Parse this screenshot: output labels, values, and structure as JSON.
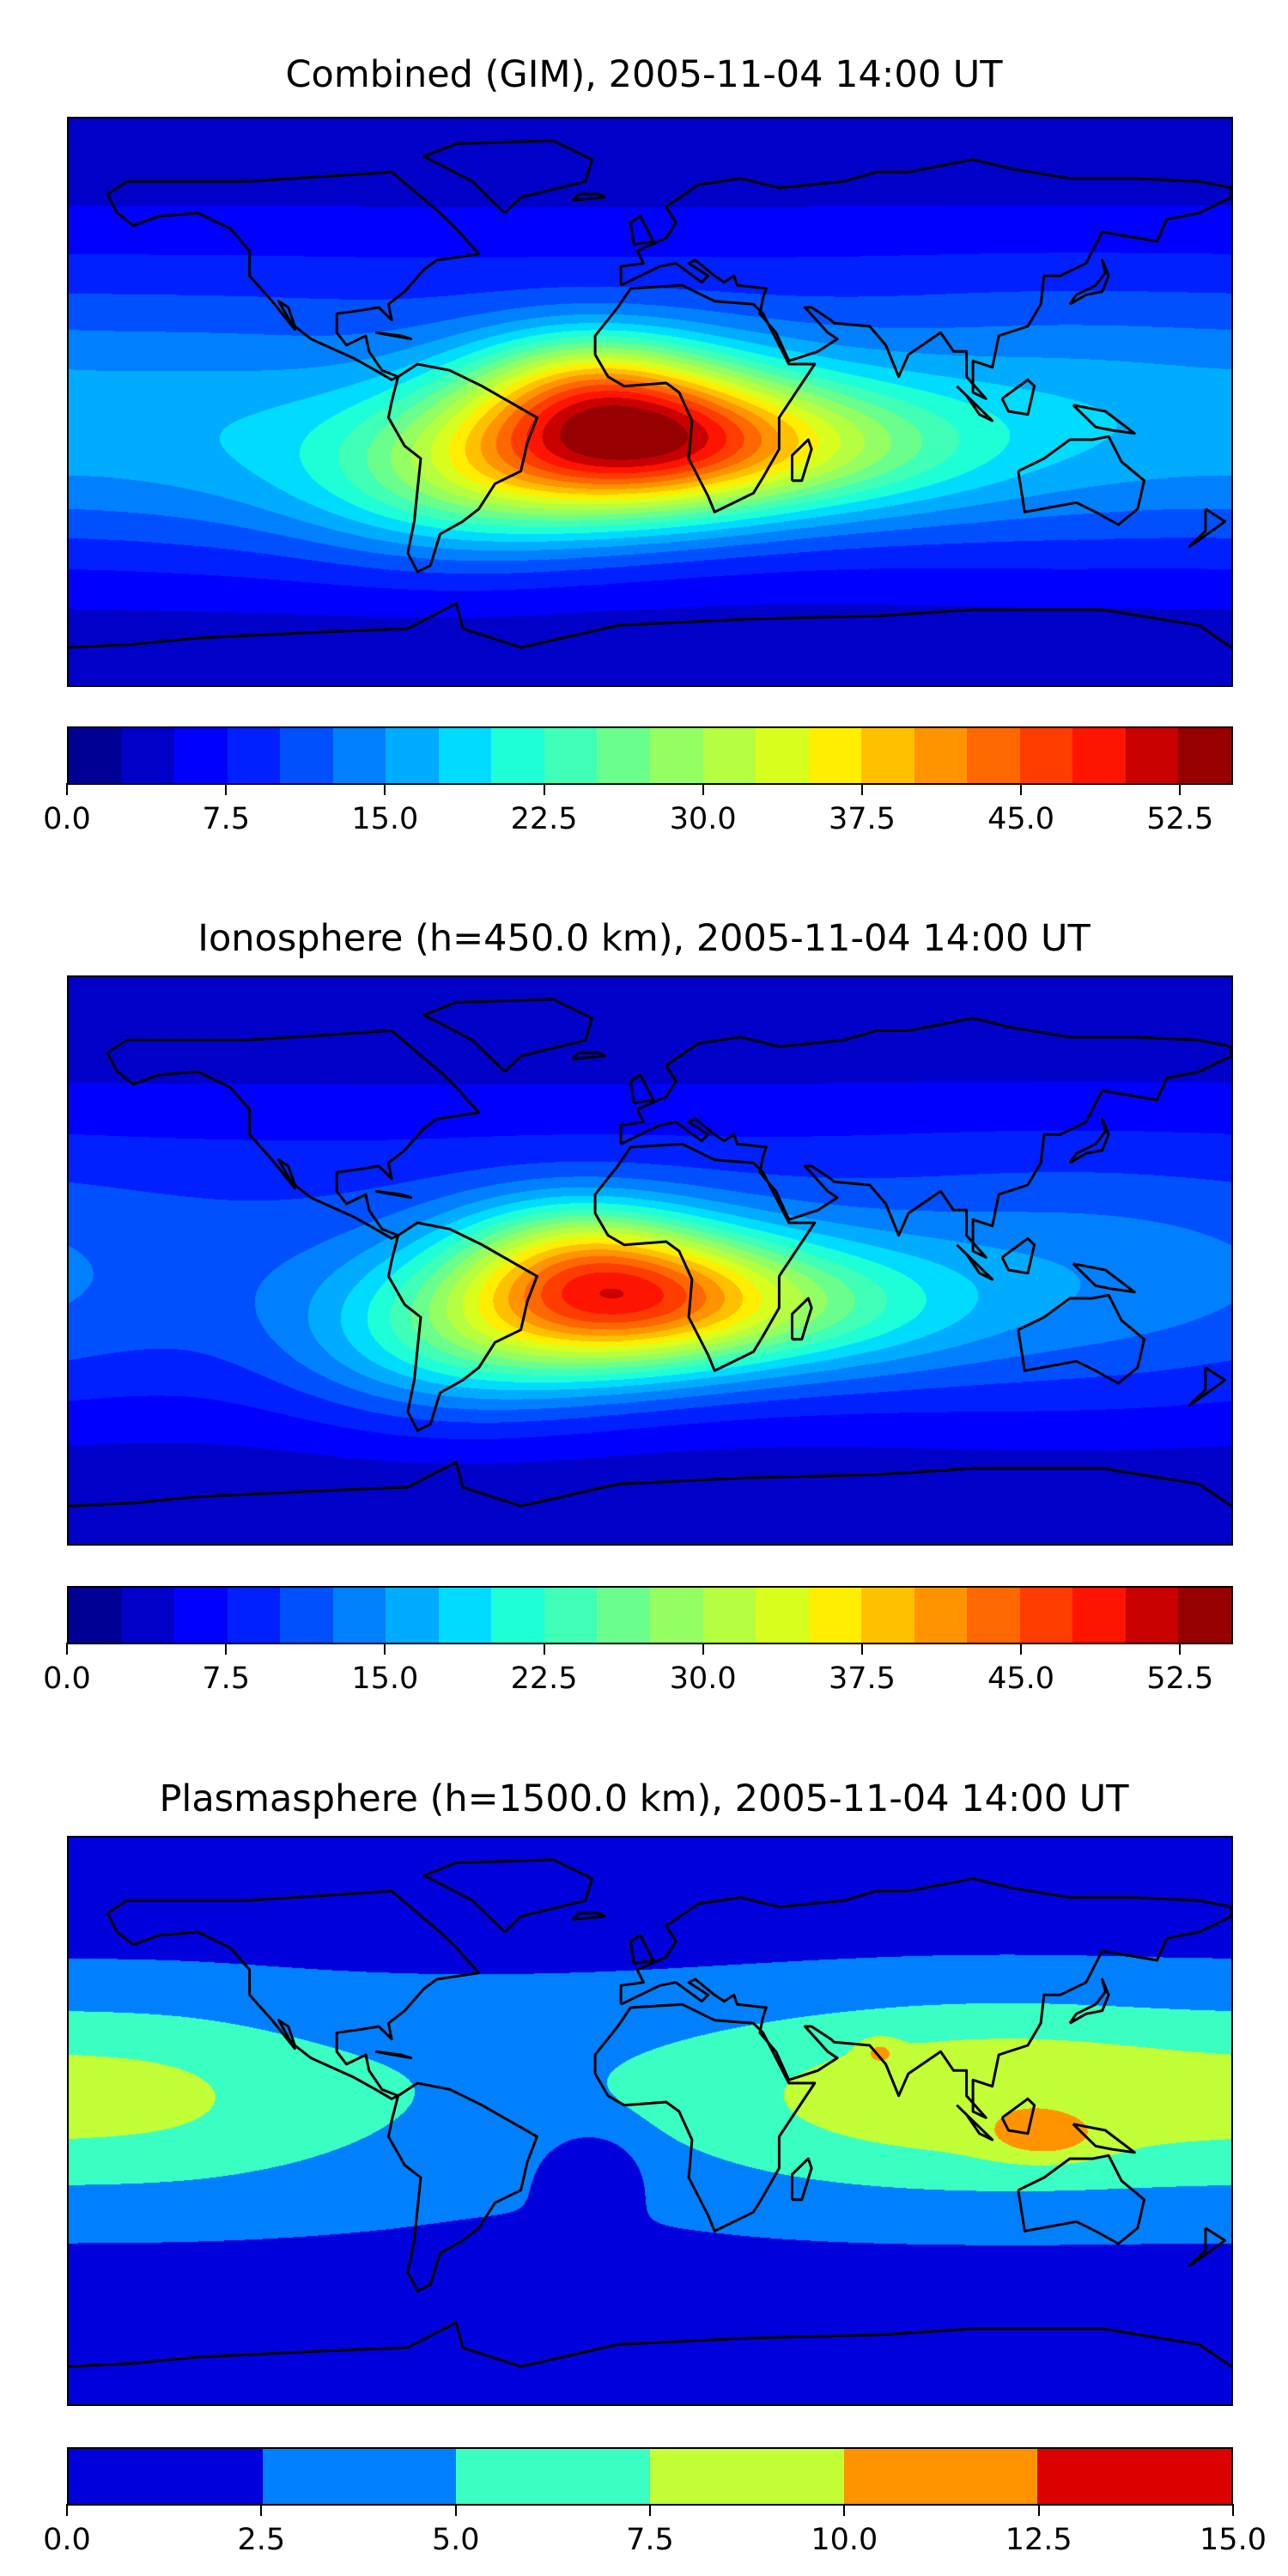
{
  "chart_data": [
    {
      "type": "heatmap",
      "title": "Combined (GIM), 2005-11-04 14:00 UT",
      "projection": "plate-carree world map with coastlines",
      "colorbar": {
        "levels_range": [
          0,
          55
        ],
        "level_step": 2.5,
        "ticks": [
          "0.0",
          "7.5",
          "15.0",
          "22.5",
          "30.0",
          "37.5",
          "45.0",
          "52.5"
        ],
        "tick_values": [
          0,
          7.5,
          15,
          22.5,
          30,
          37.5,
          45,
          52.5
        ],
        "colors": [
          "#000094",
          "#0000c8",
          "#0000ff",
          "#0020ff",
          "#0050ff",
          "#0080ff",
          "#00acff",
          "#00dcff",
          "#1effd8",
          "#40ffb6",
          "#6aff8c",
          "#94ff62",
          "#b6ff40",
          "#d8ff1e",
          "#ffee00",
          "#ffc000",
          "#ff9400",
          "#ff6800",
          "#ff3c00",
          "#ff1400",
          "#c80000",
          "#960000"
        ]
      },
      "field_peak_approx": {
        "value": 50,
        "lon": -5,
        "lat": -12
      }
    },
    {
      "type": "heatmap",
      "title": "Ionosphere  (h=450.0 km), 2005-11-04 14:00 UT",
      "projection": "plate-carree world map with coastlines",
      "colorbar": {
        "levels_range": [
          0,
          55
        ],
        "level_step": 2.5,
        "ticks": [
          "0.0",
          "7.5",
          "15.0",
          "22.5",
          "30.0",
          "37.5",
          "45.0",
          "52.5"
        ],
        "tick_values": [
          0,
          7.5,
          15,
          22.5,
          30,
          37.5,
          45,
          52.5
        ],
        "colors": [
          "#000094",
          "#0000c8",
          "#0000ff",
          "#0020ff",
          "#0050ff",
          "#0080ff",
          "#00acff",
          "#00dcff",
          "#1effd8",
          "#40ffb6",
          "#6aff8c",
          "#94ff62",
          "#b6ff40",
          "#d8ff1e",
          "#ffee00",
          "#ffc000",
          "#ff9400",
          "#ff6800",
          "#ff3c00",
          "#ff1400",
          "#c80000",
          "#960000"
        ]
      },
      "field_peak_approx": {
        "value": 44,
        "lon": -8,
        "lat": -12
      }
    },
    {
      "type": "heatmap",
      "title": "Plasmasphere (h=1500.0 km), 2005-11-04 14:00 UT",
      "projection": "plate-carree world map with coastlines",
      "colorbar": {
        "levels_range": [
          0,
          15
        ],
        "level_step": 2.5,
        "ticks": [
          "0.0",
          "2.5",
          "5.0",
          "7.5",
          "10.0",
          "12.5",
          "15.0"
        ],
        "tick_values": [
          0,
          2.5,
          5,
          7.5,
          10,
          12.5,
          15
        ],
        "colors": [
          "#0000dc",
          "#0080ff",
          "#3affc2",
          "#c2ff36",
          "#ff9400",
          "#dc0000"
        ]
      },
      "field_peak_approx": {
        "value": 11,
        "lon": 120,
        "lat": -5
      }
    }
  ]
}
